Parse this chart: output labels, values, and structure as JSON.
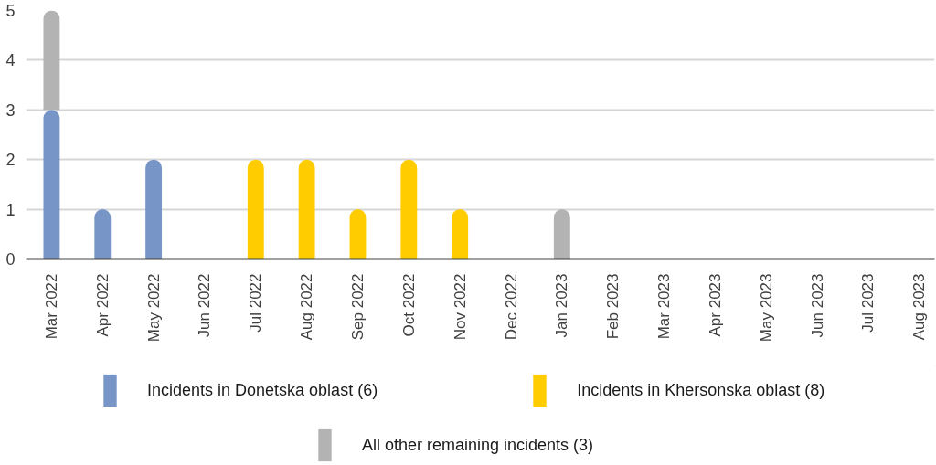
{
  "chart_data": {
    "type": "bar",
    "stacked": true,
    "categories": [
      "Mar 2022",
      "Apr 2022",
      "May 2022",
      "Jun 2022",
      "Jul 2022",
      "Aug 2022",
      "Sep 2022",
      "Oct 2022",
      "Nov 2022",
      "Dec 2022",
      "Jan 2023",
      "Feb 2023",
      "Mar 2023",
      "Apr 2023",
      "May 2023",
      "Jun 2023",
      "Jul 2023",
      "Aug 2023"
    ],
    "series": [
      {
        "name": "Incidents in Donetska oblast (6)",
        "color": "#7895c8",
        "values": [
          3,
          1,
          2,
          0,
          0,
          0,
          0,
          0,
          0,
          0,
          0,
          0,
          0,
          0,
          0,
          0,
          0,
          0
        ]
      },
      {
        "name": "Incidents in Khersonska oblast (8)",
        "color": "#ffcc00",
        "values": [
          0,
          0,
          0,
          0,
          2,
          2,
          1,
          2,
          1,
          0,
          0,
          0,
          0,
          0,
          0,
          0,
          0,
          0
        ]
      },
      {
        "name": "All other remaining incidents (3)",
        "color": "#b3b3b3",
        "values": [
          2,
          0,
          0,
          0,
          0,
          0,
          0,
          0,
          0,
          0,
          1,
          0,
          0,
          0,
          0,
          0,
          0,
          0
        ]
      }
    ],
    "ylim": [
      0,
      5
    ],
    "yticks": [
      0,
      1,
      2,
      3,
      4,
      5
    ],
    "grid": "y",
    "legend": "bottom"
  }
}
